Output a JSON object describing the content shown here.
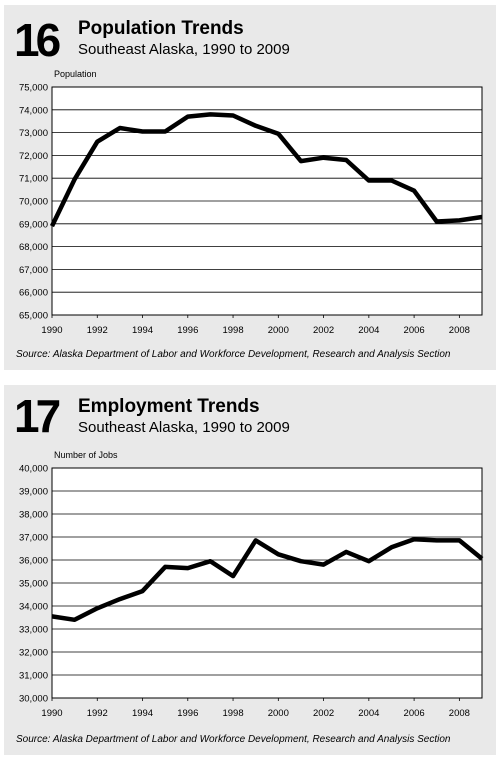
{
  "charts": [
    {
      "number": "16",
      "title": "Population Trends",
      "subtitle": "Southeast Alaska, 1990 to 2009",
      "source": "Source: Alaska Department of Labor and Workforce Development, Research and Analysis Section"
    },
    {
      "number": "17",
      "title": "Employment Trends",
      "subtitle": "Southeast Alaska, 1990 to 2009",
      "source": "Source: Alaska Department of Labor and Workforce Development, Research and Analysis Section"
    }
  ],
  "chart_data": [
    {
      "type": "line",
      "title": "Population Trends",
      "ylabel": "Population",
      "x": [
        1990,
        1991,
        1992,
        1993,
        1994,
        1995,
        1996,
        1997,
        1998,
        1999,
        2000,
        2001,
        2002,
        2003,
        2004,
        2005,
        2006,
        2007,
        2008,
        2009
      ],
      "values": [
        68900,
        70950,
        72600,
        73200,
        73050,
        73050,
        73700,
        73800,
        73750,
        73300,
        72950,
        71750,
        71900,
        71800,
        70900,
        70900,
        70450,
        69100,
        69150,
        69300
      ],
      "x_ticks": [
        1990,
        1992,
        1994,
        1996,
        1998,
        2000,
        2002,
        2004,
        2006,
        2008
      ],
      "x_tick_labels": [
        "1990",
        "1992",
        "1994",
        "1996",
        "1998",
        "2000",
        "2002",
        "2004",
        "2006",
        "2008"
      ],
      "y_ticks": [
        65000,
        66000,
        67000,
        68000,
        69000,
        70000,
        71000,
        72000,
        73000,
        74000,
        75000
      ],
      "y_tick_labels": [
        "65,000",
        "66,000",
        "67,000",
        "68,000",
        "69,000",
        "70,000",
        "71,000",
        "72,000",
        "73,000",
        "74,000",
        "75,000"
      ],
      "xlim": [
        1990,
        2009
      ],
      "ylim": [
        65000,
        75000
      ],
      "grid": "horizontal",
      "line_color": "#000000"
    },
    {
      "type": "line",
      "title": "Employment Trends",
      "ylabel": "Number of Jobs",
      "x": [
        1990,
        1991,
        1992,
        1993,
        1994,
        1995,
        1996,
        1997,
        1998,
        1999,
        2000,
        2001,
        2002,
        2003,
        2004,
        2005,
        2006,
        2007,
        2008,
        2009
      ],
      "values": [
        33550,
        33400,
        33900,
        34300,
        34650,
        35700,
        35650,
        35950,
        35300,
        36850,
        36250,
        35950,
        35800,
        36350,
        35950,
        36550,
        36900,
        36850,
        36850,
        36050
      ],
      "x_ticks": [
        1990,
        1992,
        1994,
        1996,
        1998,
        2000,
        2002,
        2004,
        2006,
        2008
      ],
      "x_tick_labels": [
        "1990",
        "1992",
        "1994",
        "1996",
        "1998",
        "2000",
        "2002",
        "2004",
        "2006",
        "2008"
      ],
      "y_ticks": [
        30000,
        31000,
        32000,
        33000,
        34000,
        35000,
        36000,
        37000,
        38000,
        39000,
        40000
      ],
      "y_tick_labels": [
        "30,000",
        "31,000",
        "32,000",
        "33,000",
        "34,000",
        "35,000",
        "36,000",
        "37,000",
        "38,000",
        "39,000",
        "40,000"
      ],
      "xlim": [
        1990,
        2009
      ],
      "ylim": [
        30000,
        40000
      ],
      "grid": "horizontal",
      "line_color": "#000000"
    }
  ]
}
